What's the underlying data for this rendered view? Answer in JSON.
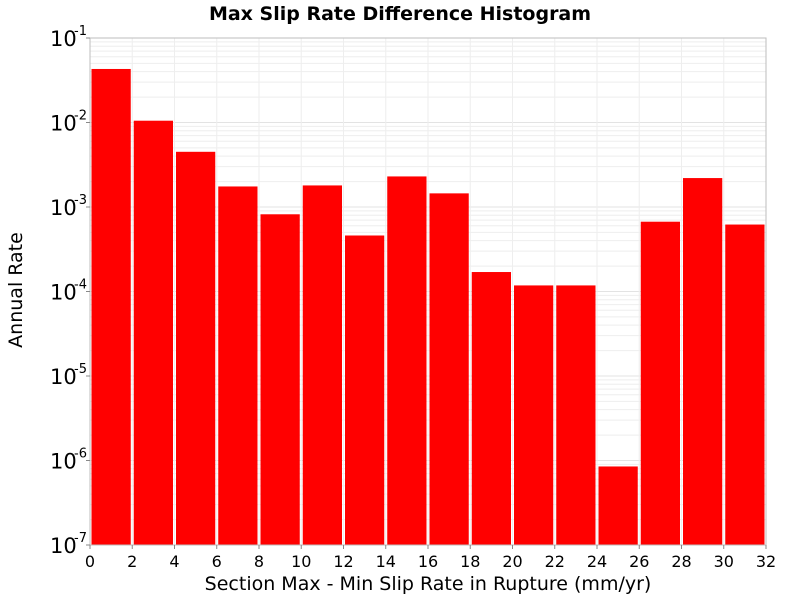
{
  "chart_data": {
    "type": "bar",
    "title": "Max Slip Rate Difference Histogram",
    "xlabel": "Section Max - Min Slip Rate in Rupture (mm/yr)",
    "ylabel": "Annual Rate",
    "y_scale": "log",
    "xlim": [
      0,
      32
    ],
    "ylim": [
      1e-07,
      0.1
    ],
    "grid": true,
    "bar_color": "#ff0000",
    "bin_width": 2,
    "x_ticks": [
      "0",
      "2",
      "4",
      "6",
      "8",
      "10",
      "12",
      "14",
      "16",
      "18",
      "20",
      "22",
      "24",
      "26",
      "28",
      "30",
      "32"
    ],
    "y_ticks": [
      {
        "base": "10",
        "exp": "-7"
      },
      {
        "base": "10",
        "exp": "-6"
      },
      {
        "base": "10",
        "exp": "-5"
      },
      {
        "base": "10",
        "exp": "-4"
      },
      {
        "base": "10",
        "exp": "-3"
      },
      {
        "base": "10",
        "exp": "-2"
      },
      {
        "base": "10",
        "exp": "-1"
      }
    ],
    "bins": [
      {
        "x0": 0,
        "x1": 2,
        "value": 0.043
      },
      {
        "x0": 2,
        "x1": 4,
        "value": 0.0105
      },
      {
        "x0": 4,
        "x1": 6,
        "value": 0.0045
      },
      {
        "x0": 6,
        "x1": 8,
        "value": 0.00175
      },
      {
        "x0": 8,
        "x1": 10,
        "value": 0.00082
      },
      {
        "x0": 10,
        "x1": 12,
        "value": 0.0018
      },
      {
        "x0": 12,
        "x1": 14,
        "value": 0.00046
      },
      {
        "x0": 14,
        "x1": 16,
        "value": 0.0023
      },
      {
        "x0": 16,
        "x1": 18,
        "value": 0.00145
      },
      {
        "x0": 18,
        "x1": 20,
        "value": 0.00017
      },
      {
        "x0": 20,
        "x1": 22,
        "value": 0.000118
      },
      {
        "x0": 22,
        "x1": 24,
        "value": 0.000118
      },
      {
        "x0": 24,
        "x1": 26,
        "value": 8.5e-07
      },
      {
        "x0": 26,
        "x1": 28,
        "value": 0.00067
      },
      {
        "x0": 28,
        "x1": 30,
        "value": 0.0022
      },
      {
        "x0": 30,
        "x1": 32,
        "value": 0.00062
      }
    ]
  }
}
